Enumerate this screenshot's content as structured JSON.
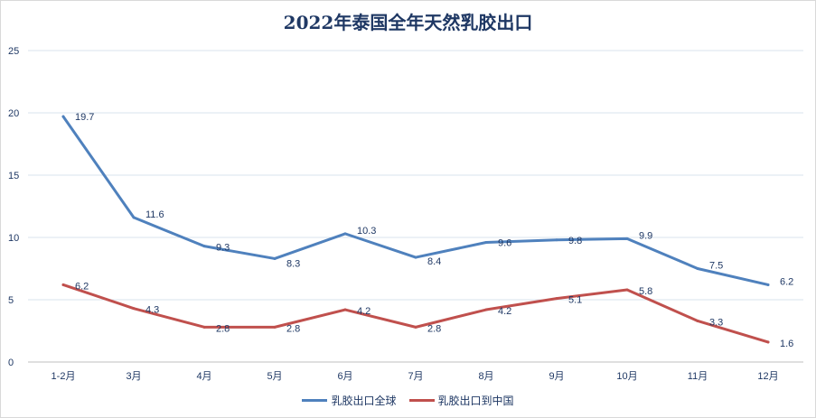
{
  "chart_data": {
    "type": "line",
    "title": "2022年泰国全年天然乳胶出口",
    "categories": [
      "1-2月",
      "3月",
      "4月",
      "5月",
      "6月",
      "7月",
      "8月",
      "9月",
      "10月",
      "11月",
      "12月"
    ],
    "series": [
      {
        "name": "乳胶出口全球",
        "color": "#4f81bd",
        "values": [
          19.7,
          11.6,
          9.3,
          8.3,
          10.3,
          8.4,
          9.6,
          9.8,
          9.9,
          7.5,
          6.2
        ]
      },
      {
        "name": "乳胶出口到中国",
        "color": "#c0504d",
        "values": [
          6.2,
          4.3,
          2.8,
          2.8,
          4.2,
          2.8,
          4.2,
          5.1,
          5.8,
          3.3,
          1.6
        ]
      }
    ],
    "yticks": [
      0,
      5,
      10,
      15,
      20,
      25
    ],
    "ylim": [
      0,
      25
    ],
    "grid": true,
    "legend_position": "bottom",
    "xlabel": "",
    "ylabel": ""
  }
}
